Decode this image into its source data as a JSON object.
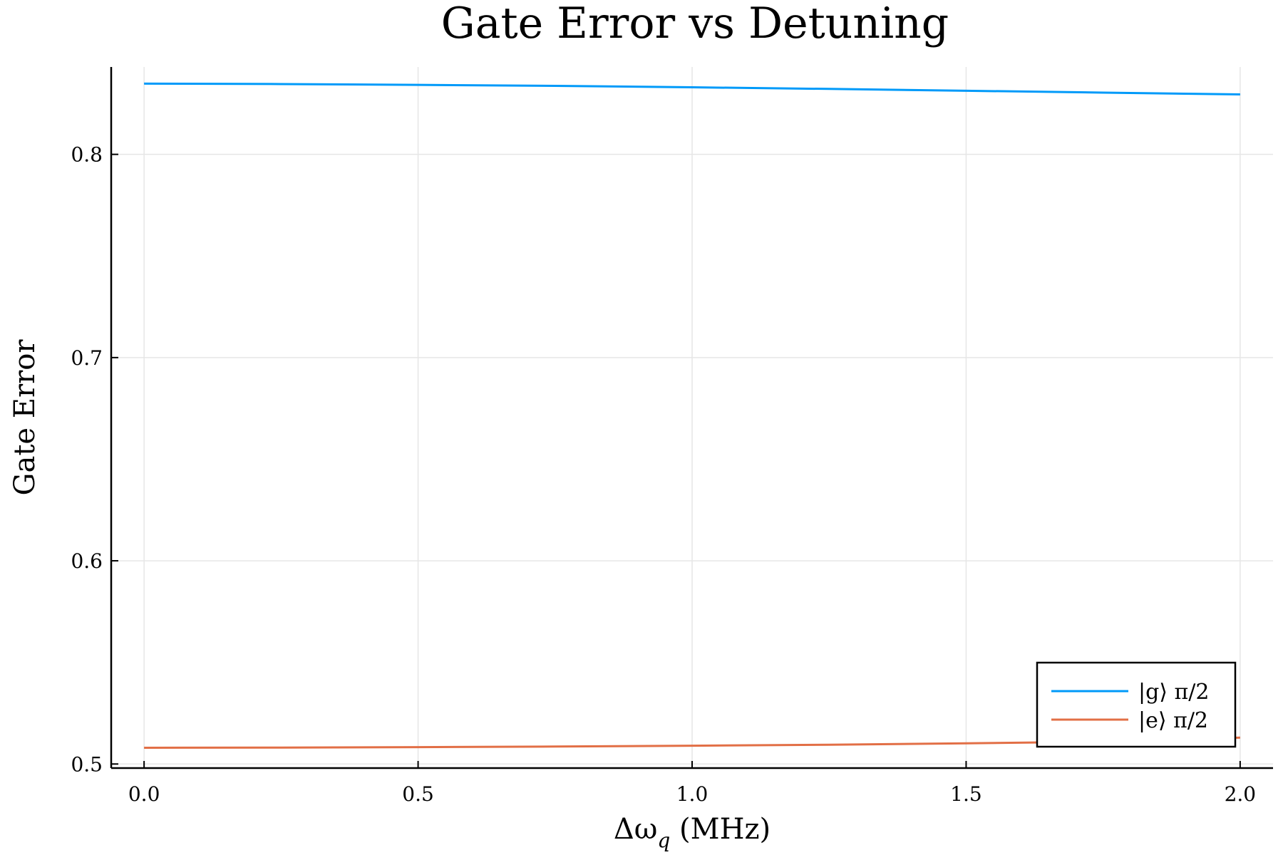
{
  "chart_data": {
    "type": "line",
    "title": "Gate Error vs Detuning",
    "xlabel": "Δω",
    "xlabel_sub": "q",
    "xlabel_unit": "(MHz)",
    "ylabel": "Gate Error",
    "xlim": [
      -0.06,
      2.06
    ],
    "ylim": [
      0.498,
      0.843
    ],
    "xticks": [
      0.0,
      0.5,
      1.0,
      1.5,
      2.0
    ],
    "xtick_labels": [
      "0.0",
      "0.5",
      "1.0",
      "1.5",
      "2.0"
    ],
    "yticks": [
      0.5,
      0.6,
      0.7,
      0.8
    ],
    "ytick_labels": [
      "0.5",
      "0.6",
      "0.7",
      "0.8"
    ],
    "grid": true,
    "legend_position": "bottom-right",
    "x": [
      0.0,
      0.25,
      0.5,
      0.75,
      1.0,
      1.25,
      1.5,
      1.75,
      2.0
    ],
    "series": [
      {
        "name": "|g⟩ π/2",
        "color": "#009af9",
        "values": [
          0.8348,
          0.8346,
          0.8342,
          0.8337,
          0.833,
          0.8322,
          0.8313,
          0.8304,
          0.8295
        ]
      },
      {
        "name": "|e⟩ π/2",
        "color": "#e26f46",
        "values": [
          0.508,
          0.5081,
          0.5083,
          0.5086,
          0.509,
          0.5095,
          0.5102,
          0.511,
          0.513
        ]
      }
    ]
  }
}
